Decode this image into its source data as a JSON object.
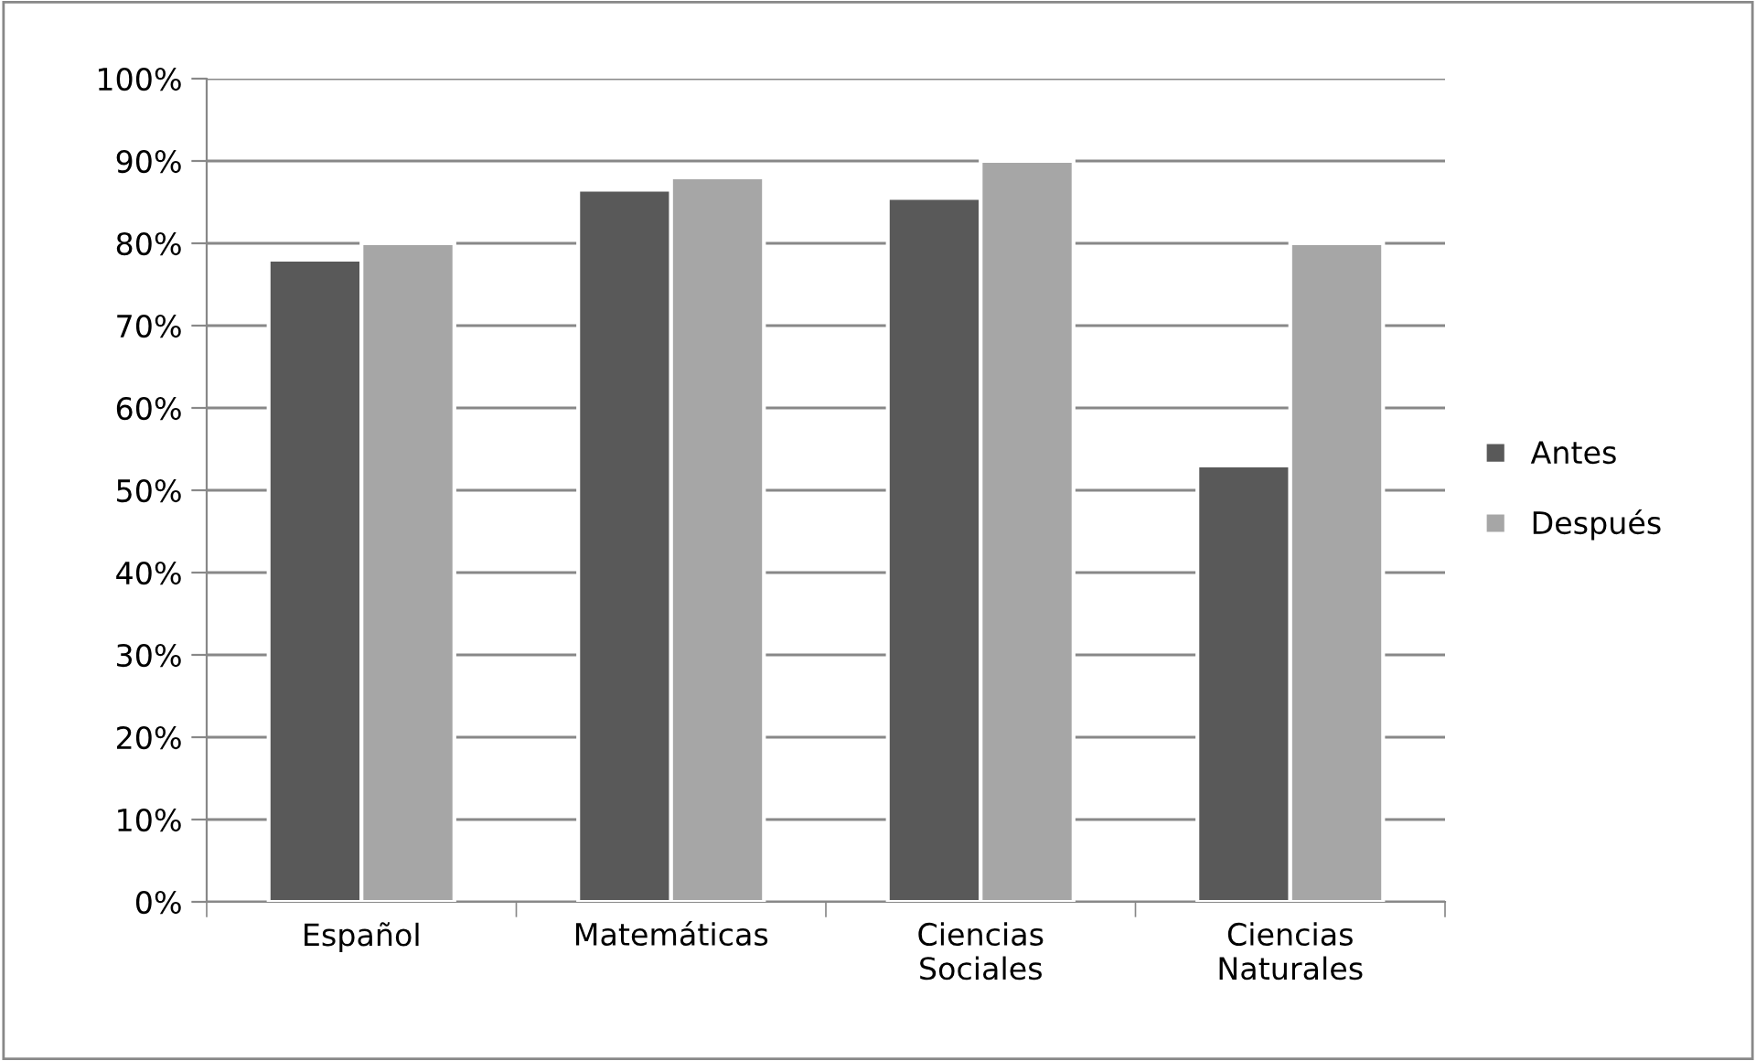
{
  "chart_data": {
    "type": "bar",
    "categories": [
      "Español",
      "Matemáticas",
      "Ciencias\nSociales",
      "Ciencias\nNaturales"
    ],
    "series": [
      {
        "name": "Antes",
        "color": "#595959",
        "values": [
          78,
          86.5,
          85.5,
          53
        ]
      },
      {
        "name": "Después",
        "color": "#a6a6a6",
        "values": [
          80,
          88,
          90,
          80
        ]
      }
    ],
    "ylim": [
      0,
      100
    ],
    "yticks": [
      {
        "value": 0,
        "label": "0%"
      },
      {
        "value": 10,
        "label": "10%"
      },
      {
        "value": 20,
        "label": "20%"
      },
      {
        "value": 30,
        "label": "30%"
      },
      {
        "value": 40,
        "label": "40%"
      },
      {
        "value": 50,
        "label": "50%"
      },
      {
        "value": 60,
        "label": "60%"
      },
      {
        "value": 70,
        "label": "70%"
      },
      {
        "value": 80,
        "label": "80%"
      },
      {
        "value": 90,
        "label": "90%"
      },
      {
        "value": 100,
        "label": "100%"
      }
    ],
    "grid": "y",
    "legend": "right"
  }
}
